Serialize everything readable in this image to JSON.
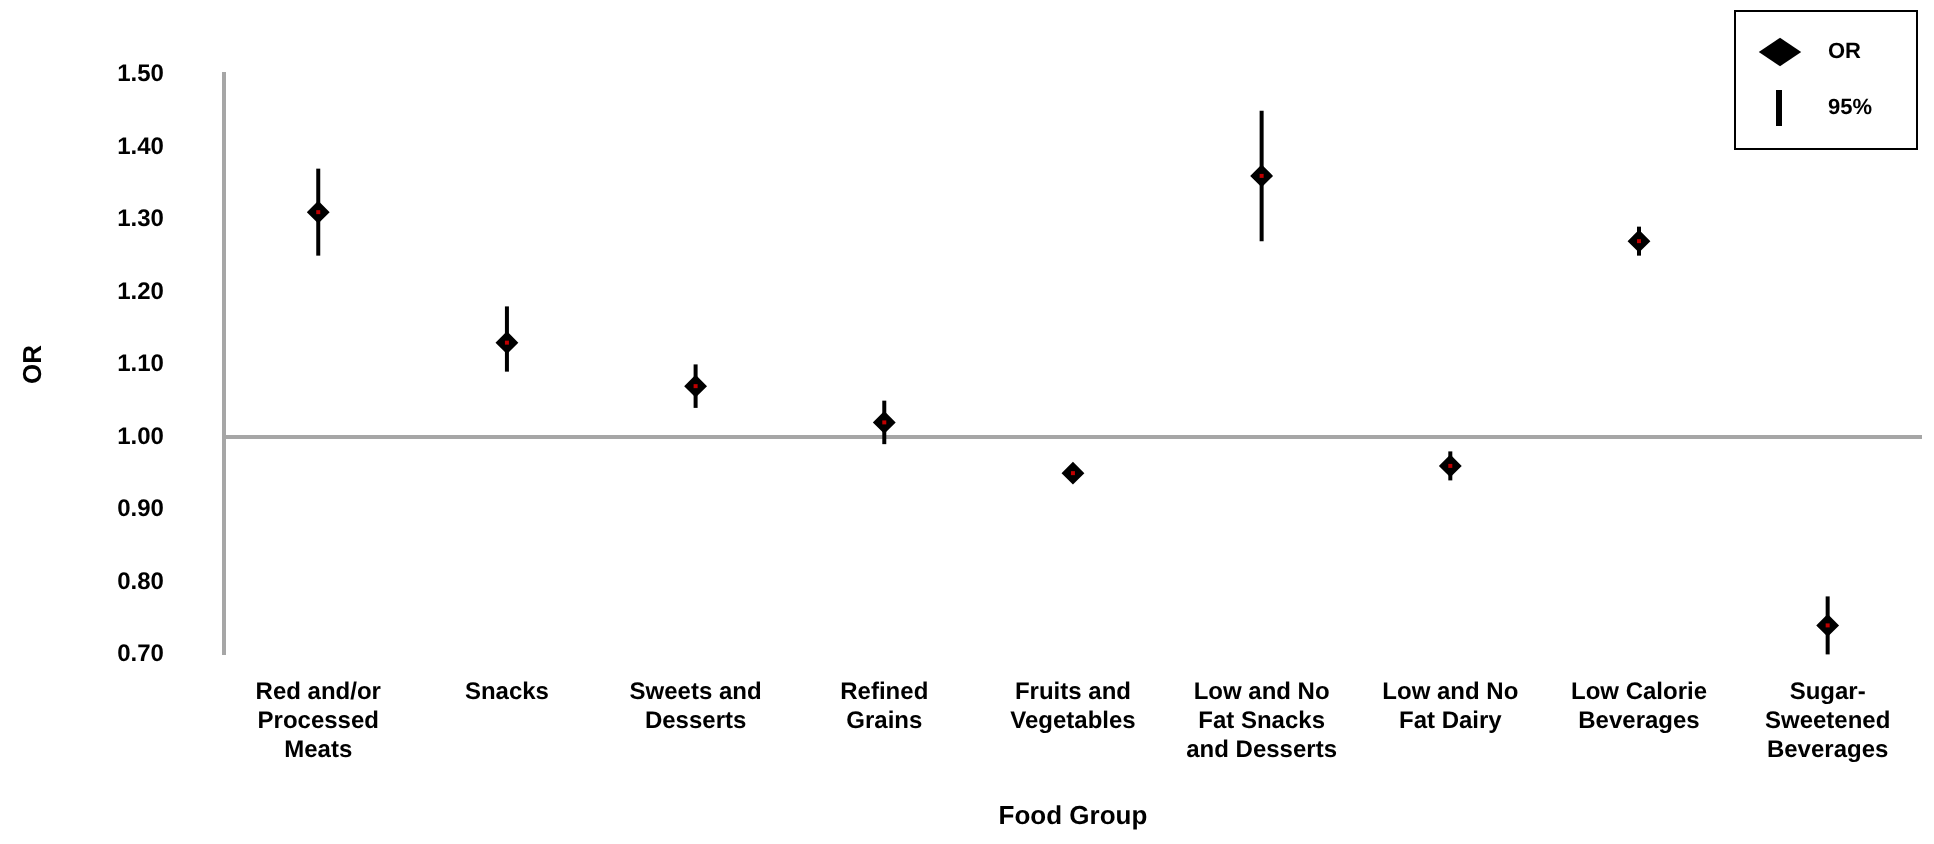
{
  "chart_data": {
    "type": "scatter",
    "xlabel": "Food Group",
    "ylabel": "OR",
    "categories": [
      "Red and/or Processed Meats",
      "Snacks",
      "Sweets and Desserts",
      "Refined Grains",
      "Fruits and Vegetables",
      "Low and No Fat  Snacks and Desserts",
      "Low and No Fat Dairy",
      "Low Calorie Beverages",
      "Sugar-Sweetened Beverages"
    ],
    "series": [
      {
        "name": "OR",
        "color": "#000000",
        "values": [
          1.31,
          1.13,
          1.07,
          1.02,
          0.95,
          1.36,
          0.96,
          1.27,
          0.74
        ],
        "errors": [
          [
            1.25,
            1.37
          ],
          [
            1.09,
            1.18
          ],
          [
            1.04,
            1.1
          ],
          [
            0.99,
            1.05
          ],
          null,
          [
            1.27,
            1.45
          ],
          [
            0.94,
            0.98
          ],
          [
            1.25,
            1.29
          ],
          [
            0.7,
            0.78
          ]
        ]
      }
    ],
    "ylim": [
      0.7,
      1.5
    ],
    "yticks": [
      {
        "value": 0.7,
        "label": "0.70"
      },
      {
        "value": 0.8,
        "label": "0.80"
      },
      {
        "value": 0.9,
        "label": "0.90"
      },
      {
        "value": 1.0,
        "label": "1.00"
      },
      {
        "value": 1.1,
        "label": "1.10"
      },
      {
        "value": 1.2,
        "label": "1.20"
      },
      {
        "value": 1.3,
        "label": "1.30"
      },
      {
        "value": 1.4,
        "label": "1.40"
      },
      {
        "value": 1.5,
        "label": "1.50"
      }
    ],
    "ref_lines": [
      {
        "axis": "y",
        "value": 1.0,
        "color": "#a6a6a6"
      }
    ],
    "annotations": [
      "95%"
    ],
    "grid": false,
    "legend": "top right",
    "marker": "diamond"
  }
}
